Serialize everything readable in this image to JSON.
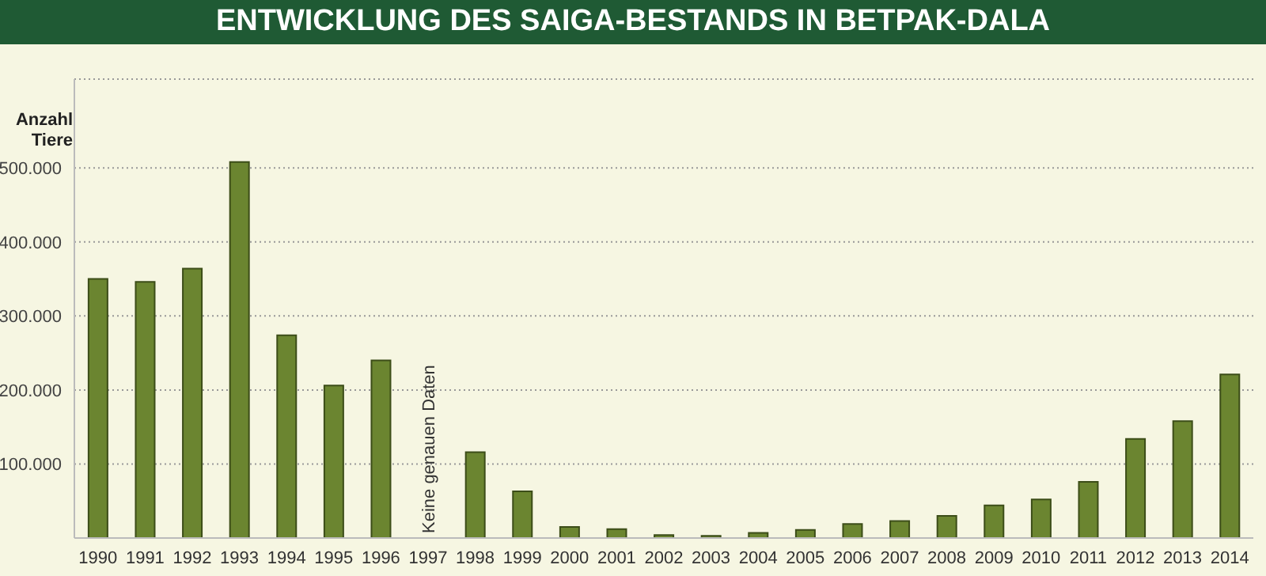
{
  "chart_data": {
    "type": "bar",
    "title": "ENTWICKLUNG DES SAIGA-BESTANDS IN BETPAK-DALA",
    "ylabel": "Anzahl Tiere",
    "categories": [
      "1990",
      "1991",
      "1992",
      "1993",
      "1994",
      "1995",
      "1996",
      "1997",
      "1998",
      "1999",
      "2000",
      "2001",
      "2002",
      "2003",
      "2004",
      "2005",
      "2006",
      "2007",
      "2008",
      "2009",
      "2010",
      "2011",
      "2012",
      "2013",
      "2014"
    ],
    "values": [
      350000,
      346000,
      364000,
      508000,
      274000,
      206000,
      240000,
      null,
      116000,
      63000,
      15000,
      12000,
      4000,
      3000,
      7000,
      11000,
      19000,
      23000,
      30000,
      44000,
      52000,
      76000,
      134000,
      158000,
      221000
    ],
    "color": "#6b8530",
    "ylim": [
      0,
      620000
    ],
    "yticks": [
      {
        "value": 100000,
        "label": "100.000"
      },
      {
        "value": 200000,
        "label": "200.000"
      },
      {
        "value": 300000,
        "label": "300.000"
      },
      {
        "value": 400000,
        "label": "400.000"
      },
      {
        "value": 500000,
        "label": "500.000"
      }
    ],
    "grid": "y",
    "annotations": [
      "Keine genauen Daten"
    ]
  }
}
